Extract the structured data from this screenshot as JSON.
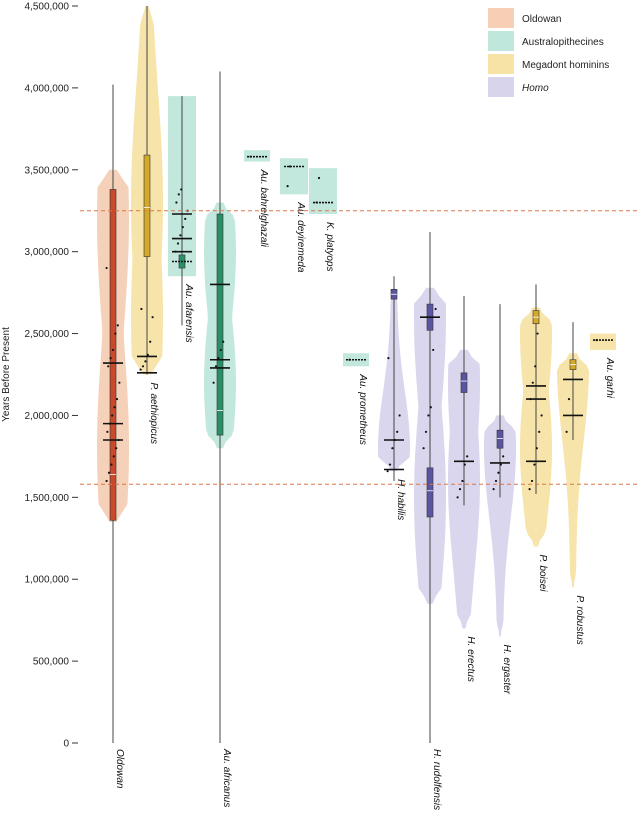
{
  "chart_data": {
    "type": "violin",
    "ylabel": "Years Before Present",
    "ylim": [
      0,
      4500000
    ],
    "yticks": [
      0,
      500000,
      1000000,
      1500000,
      2000000,
      2500000,
      3000000,
      3500000,
      4000000,
      4500000
    ],
    "ytick_labels": [
      "0",
      "500,000",
      "1,000,000",
      "1,500,000",
      "2,000,000",
      "2,500,000",
      "3,000,000",
      "3,500,000",
      "4,000,000",
      "4,500,000"
    ],
    "reference_lines": [
      3250000,
      1580000
    ],
    "reference_line_color": "#d9784a",
    "grid": false,
    "legend_position": "top-right",
    "groups": [
      {
        "name": "Oldowan",
        "color": "#f6cfb5",
        "dark": "#c8492c"
      },
      {
        "name": "Australopithecines",
        "color": "#bfe7dc",
        "dark": "#2a8f66"
      },
      {
        "name": "Megadont hominins",
        "color": "#f7e3a6",
        "dark": "#d3a92a"
      },
      {
        "name": "Homo",
        "color": "#d8d4ec",
        "dark": "#5a55a0",
        "italic": true
      }
    ],
    "taxa": [
      {
        "label": "Oldowan",
        "group": 0,
        "min": 0,
        "max": 4020000,
        "q1": 1360000,
        "median": 1640000,
        "q3": 3380000,
        "violin_top": 3500000,
        "violin_bottom": 1350000,
        "peaks": [
          1800000,
          3200000
        ],
        "points": [
          1600000,
          1650000,
          1700000,
          1750000,
          1800000,
          1850000,
          1900000,
          1950000,
          2000000,
          2050000,
          2100000,
          2200000,
          2300000,
          2350000,
          2400000,
          2500000,
          2550000,
          2900000
        ],
        "means": [
          2320000,
          1950000,
          1850000
        ],
        "label_anchor": "bottom"
      },
      {
        "label": "P. aethiopicus",
        "group": 2,
        "min": 2250000,
        "max": 4500000,
        "q1": 2970000,
        "median": 3270000,
        "q3": 3590000,
        "violin_top": 4500000,
        "violin_bottom": 2250000,
        "peaks": [
          2600000,
          3300000
        ],
        "points": [
          2280000,
          2300000,
          2330000,
          2370000,
          2450000,
          2600000,
          2650000
        ],
        "means": [
          2360000,
          2260000
        ],
        "label_anchor": "under"
      },
      {
        "label": "Au. afarensis",
        "group": 1,
        "min": 2550000,
        "max": 3950000,
        "q1": 2900000,
        "median": 2940000,
        "q3": 2980000,
        "violin_top": 3950000,
        "violin_bottom": 2850000,
        "peaks": [
          3300000
        ],
        "points": [
          3000000,
          3050000,
          3100000,
          3150000,
          3200000,
          3250000,
          3300000,
          3350000,
          3380000
        ],
        "means": [
          3230000,
          3080000,
          3000000
        ],
        "label_anchor": "under",
        "rect_only": true
      },
      {
        "label": "Au. africanus",
        "group": 1,
        "min": 0,
        "max": 4100000,
        "q1": 1880000,
        "median": 2030000,
        "q3": 3230000,
        "violin_top": 3300000,
        "violin_bottom": 1800000,
        "peaks": [
          2200000,
          3000000
        ],
        "points": [
          2200000,
          2300000,
          2350000,
          2400000,
          2450000
        ],
        "means": [
          2800000,
          2340000,
          2290000
        ],
        "label_anchor": "bottom"
      },
      {
        "label": "Au. bahrelghazali",
        "group": 1,
        "min": 3550000,
        "max": 3620000,
        "median": 3580000,
        "violin_top": 3620000,
        "violin_bottom": 3550000,
        "points": [
          3580000
        ],
        "label_anchor": "under",
        "rect_only": true
      },
      {
        "label": "Au. deyiremeda",
        "group": 1,
        "min": 3350000,
        "max": 3570000,
        "median": 3520000,
        "violin_top": 3570000,
        "violin_bottom": 3350000,
        "points": [
          3400000,
          3520000
        ],
        "label_anchor": "under",
        "rect_only": true
      },
      {
        "label": "K. platyops",
        "group": 1,
        "min": 3230000,
        "max": 3510000,
        "median": 3300000,
        "violin_top": 3510000,
        "violin_bottom": 3230000,
        "points": [
          3300000,
          3450000
        ],
        "label_anchor": "under",
        "rect_only": true
      },
      {
        "label": "Au. prometheus",
        "group": 1,
        "min": 2300000,
        "max": 2380000,
        "median": 2340000,
        "violin_top": 2380000,
        "violin_bottom": 2300000,
        "points": [
          2340000
        ],
        "label_anchor": "under",
        "rect_only": true
      },
      {
        "label": "H. habilis",
        "group": 3,
        "min": 1600000,
        "max": 2850000,
        "q1": 2710000,
        "median": 2740000,
        "q3": 2770000,
        "violin_top": 2780000,
        "violin_bottom": 1660000,
        "peaks": [
          1800000
        ],
        "points": [
          1660000,
          1700000,
          1800000,
          1850000,
          1900000,
          2000000,
          2350000
        ],
        "means": [
          1850000,
          1670000
        ],
        "label_anchor": "under"
      },
      {
        "label": "H. rudolfensis",
        "group": 3,
        "min": 0,
        "max": 3120000,
        "q1": 1380000,
        "median": 1540000,
        "q3": 1680000,
        "violin_top": 2780000,
        "violin_bottom": 850000,
        "peaks": [
          1500000,
          2600000
        ],
        "points": [
          1800000,
          1900000,
          2000000,
          2050000,
          2400000,
          2650000
        ],
        "means": [
          2600000
        ],
        "box2": [
          2520000,
          2680000
        ],
        "label_anchor": "bottom"
      },
      {
        "label": "H. erectus",
        "group": 3,
        "min": 1450000,
        "max": 2730000,
        "q1": 2140000,
        "median": 2210000,
        "q3": 2260000,
        "violin_top": 2400000,
        "violin_bottom": 700000,
        "peaks": [
          1600000,
          2200000
        ],
        "points": [
          1500000,
          1550000,
          1600000,
          1700000,
          1750000
        ],
        "means": [
          1720000
        ],
        "label_anchor": "under"
      },
      {
        "label": "H. ergaster",
        "group": 3,
        "min": 1500000,
        "max": 2680000,
        "q1": 1800000,
        "median": 1860000,
        "q3": 1910000,
        "violin_top": 2000000,
        "violin_bottom": 650000,
        "peaks": [
          1800000
        ],
        "points": [
          1550000,
          1600000,
          1650000,
          1700000,
          1750000
        ],
        "means": [
          1710000
        ],
        "label_anchor": "under"
      },
      {
        "label": "P. boisei",
        "group": 2,
        "min": 1520000,
        "max": 2800000,
        "q1": 2560000,
        "median": 2600000,
        "q3": 2640000,
        "violin_top": 2660000,
        "violin_bottom": 1200000,
        "peaks": [
          1800000,
          2500000
        ],
        "points": [
          1550000,
          1600000,
          1700000,
          1800000,
          1900000,
          2000000,
          2100000,
          2200000,
          2300000,
          2500000
        ],
        "means": [
          2180000,
          2100000,
          1720000
        ],
        "label_anchor": "under"
      },
      {
        "label": "P. robustus",
        "group": 2,
        "min": 1850000,
        "max": 2570000,
        "q1": 2280000,
        "median": 2310000,
        "q3": 2340000,
        "violin_top": 2380000,
        "violin_bottom": 950000,
        "peaks": [
          2300000
        ],
        "points": [
          1900000,
          2100000
        ],
        "means": [
          2220000,
          2000000
        ],
        "label_anchor": "under"
      },
      {
        "label": "Au. garhi",
        "group": 1,
        "min": 2400000,
        "max": 2500000,
        "median": 2460000,
        "violin_top": 2500000,
        "violin_bottom": 2400000,
        "points": [
          2460000
        ],
        "label_anchor": "under",
        "rect_only": true,
        "color_group": 2
      }
    ]
  }
}
